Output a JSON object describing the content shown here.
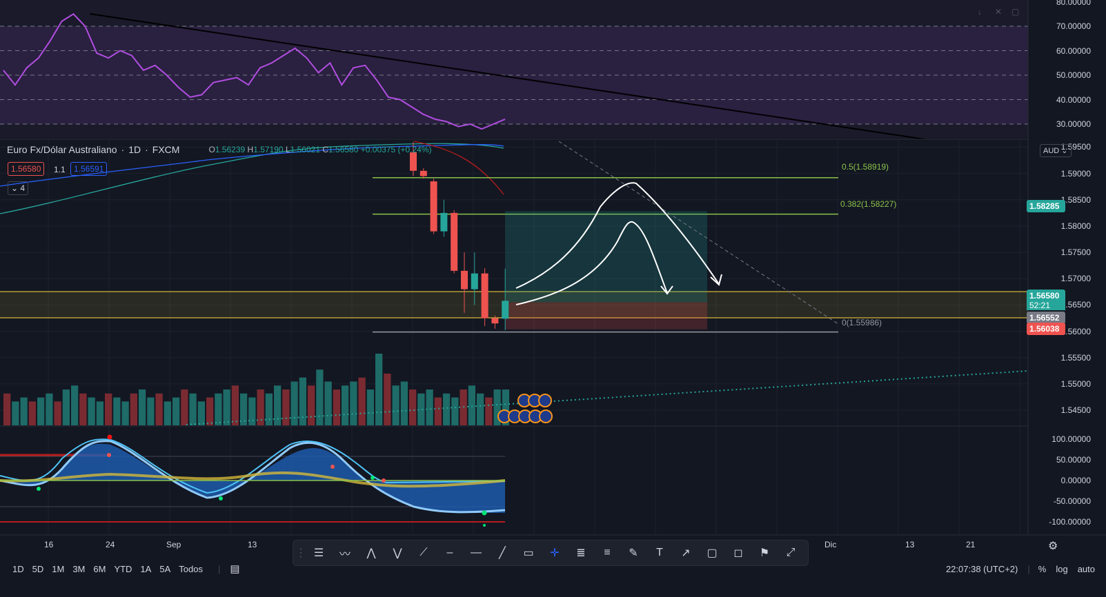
{
  "symbol": {
    "name": "Euro Fx/Dólar Australiano",
    "interval": "1D",
    "exchange": "FXCM",
    "open_label": "O",
    "open": "1.56239",
    "high_label": "H",
    "high": "1.57190",
    "low_label": "L",
    "low": "1.56021",
    "close_label": "C",
    "close": "1.56580",
    "change": "+0.00375",
    "change_pct": "(+0.24%)",
    "bid": "1.56580",
    "spread": "1.1",
    "ask": "1.56591",
    "indicators_count": "4",
    "currency": "AUD"
  },
  "price_axis": {
    "labels": [
      "1.59500",
      "1.59000",
      "1.58500",
      "1.58000",
      "1.57500",
      "1.57000",
      "1.56500",
      "1.56000",
      "1.55500",
      "1.55000",
      "1.54500"
    ],
    "last_price": "1.56580",
    "countdown": "52:21",
    "tag_1": "1.58285",
    "tag_2": "1.56552",
    "tag_3": "1.56038"
  },
  "rsi_axis": {
    "labels": [
      "80.00000",
      "70.00000",
      "60.00000",
      "50.00000",
      "40.00000",
      "30.00000"
    ]
  },
  "osc_axis": {
    "labels": [
      "100.00000",
      "50.00000",
      "0.00000",
      "-50.00000",
      "-100.00000"
    ]
  },
  "fib": {
    "l05": "0.5(1.58919)",
    "l0382": "0.382(1.58227)",
    "l0": "0(1.55986)"
  },
  "time_axis": [
    "16",
    "24",
    "Sep",
    "13",
    "Dic",
    "13",
    "21"
  ],
  "timeframes": [
    "1D",
    "5D",
    "1M",
    "3M",
    "6M",
    "YTD",
    "1A",
    "5A",
    "Todos"
  ],
  "clock": "22:07:38 (UTC+2)",
  "scale_options": {
    "percent": "%",
    "log": "log",
    "auto": "auto"
  },
  "colors": {
    "bg": "#131722",
    "up": "#26a69a",
    "down": "#ef5350",
    "rsi": "#b04ee0",
    "fib": "#8bc34a",
    "zone": "#d4b83a"
  },
  "chart_data": {
    "type": "candlestick",
    "title": "Euro Fx/Dólar Australiano",
    "candles": [
      {
        "o": 1.594,
        "h": 1.596,
        "l": 1.5895,
        "c": 1.5905
      },
      {
        "o": 1.5905,
        "h": 1.591,
        "l": 1.589,
        "c": 1.5895
      },
      {
        "o": 1.5885,
        "h": 1.589,
        "l": 1.5785,
        "c": 1.579
      },
      {
        "o": 1.579,
        "h": 1.585,
        "l": 1.578,
        "c": 1.5825
      },
      {
        "o": 1.5825,
        "h": 1.583,
        "l": 1.571,
        "c": 1.5715
      },
      {
        "o": 1.5715,
        "h": 1.575,
        "l": 1.5635,
        "c": 1.568
      },
      {
        "o": 1.568,
        "h": 1.575,
        "l": 1.565,
        "c": 1.571
      },
      {
        "o": 1.571,
        "h": 1.572,
        "l": 1.561,
        "c": 1.5625
      },
      {
        "o": 1.5625,
        "h": 1.563,
        "l": 1.5605,
        "c": 1.5615
      },
      {
        "o": 1.5624,
        "h": 1.5719,
        "l": 1.5602,
        "c": 1.5658
      }
    ],
    "volume": [
      8,
      6,
      7,
      6,
      7,
      8,
      6,
      9,
      10,
      8,
      7,
      6,
      8,
      7,
      6,
      8,
      9,
      7,
      8,
      6,
      7,
      9,
      8,
      6,
      7,
      8,
      9,
      10,
      8,
      7,
      9,
      8,
      10,
      9,
      11,
      12,
      10,
      14,
      11,
      9,
      10,
      11,
      12,
      9,
      18,
      13,
      10,
      11,
      9,
      8,
      9,
      7,
      8,
      7,
      9,
      10,
      8,
      7,
      9,
      9
    ],
    "rsi": [
      52,
      46,
      53,
      57,
      64,
      72,
      75,
      70,
      59,
      57,
      60,
      58,
      52,
      54,
      50,
      45,
      41,
      42,
      47,
      48,
      49,
      46,
      53,
      55,
      58,
      61,
      57,
      51,
      55,
      46,
      53,
      54,
      48,
      41,
      40,
      37,
      34,
      32,
      31,
      29,
      30,
      28,
      30,
      32
    ],
    "fib_levels": [
      {
        "ratio": 0.5,
        "value": 1.58919
      },
      {
        "ratio": 0.382,
        "value": 1.58227
      },
      {
        "ratio": 0,
        "value": 1.55986
      }
    ],
    "position": {
      "entry": 1.56552,
      "target": 1.58285,
      "stop": 1.56038
    },
    "ylim": [
      1.542,
      1.5965
    ]
  }
}
